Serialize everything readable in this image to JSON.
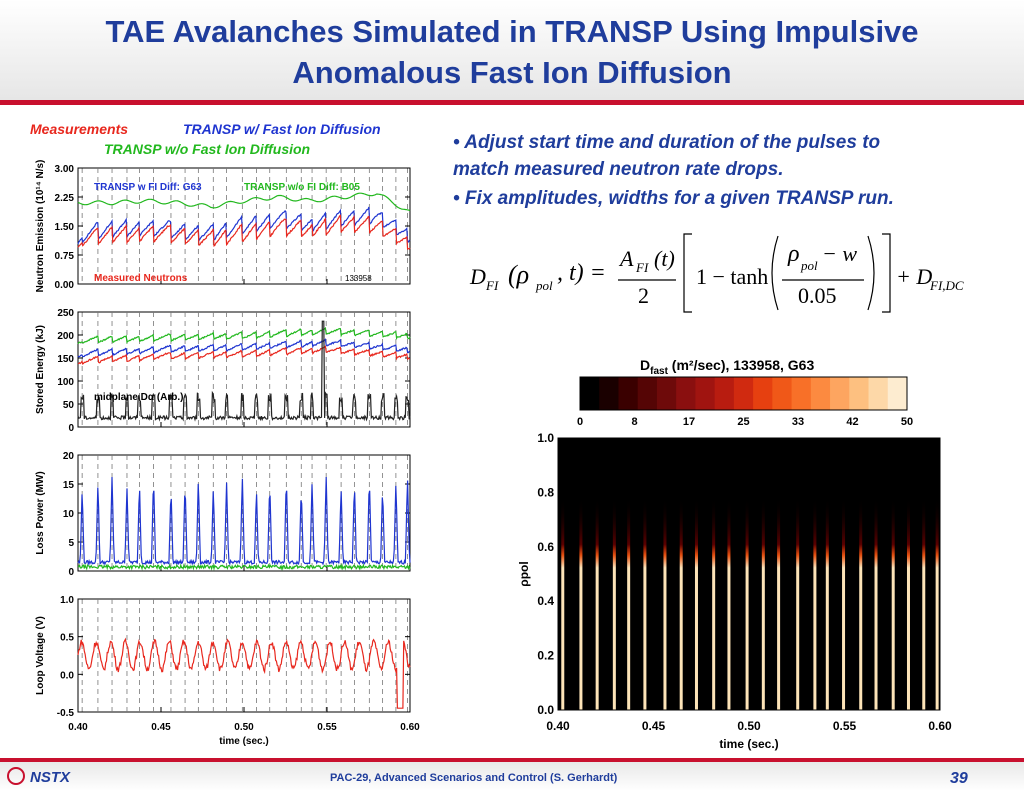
{
  "title": {
    "line1": "TAE Avalanches Simulated in TRANSP Using Impulsive",
    "line2": "Anomalous Fast Ion Diffusion"
  },
  "colors": {
    "accent_red": "#c8102e",
    "title_blue": "#1f3d9c",
    "measured": "#e8281e",
    "with_diff": "#1f35d0",
    "without_diff": "#22b81e"
  },
  "legend": {
    "measurements": "Measurements",
    "transp_with": "TRANSP w/ Fast Ion Diffusion",
    "transp_without": "TRANSP w/o Fast Ion Diffusion"
  },
  "bullets": {
    "b1_line1": "• Adjust start time and duration of the pulses to",
    "b1_line2": "match measured neutron rate drops.",
    "b2": "• Fix amplitudes, widths for a given TRANSP run."
  },
  "formula": {
    "lhs": "D",
    "lhs_sub": "FI",
    "lhs_args": "(ρ",
    "lhs_args_sub": "pol",
    "lhs_args_end": ", t) =",
    "num": "A",
    "num_sub": "FI",
    "num_arg": "(t)",
    "den": "2",
    "bracket_mid": "1 − tanh",
    "inner_num": "ρ",
    "inner_num_sub": "pol",
    "inner_num_end": " − w",
    "inner_den": "0.05",
    "rhs": "+ D",
    "rhs_sub": "FI,DC"
  },
  "footer": {
    "logo": "NSTX",
    "center": "PAC-29, Advanced Scenarios and Control (S. Gerhardt)",
    "page": "39"
  },
  "chart_data": [
    {
      "type": "line",
      "panel": "neutron-emission",
      "ylabel": "Neutron Emission (10¹⁴ N/s)",
      "ylim": [
        0,
        3
      ],
      "yticks": [
        "0.00",
        "0.75",
        "1.50",
        "2.25",
        "3.00"
      ],
      "xlim": [
        0.4,
        0.6
      ],
      "annotations": [
        "TRANSP w FI Diff: G63",
        "TRANSP w/o FI Diff: B05",
        "Measured Neutrons",
        "133958"
      ],
      "series": [
        {
          "name": "TRANSP w/o FI Diff: B05",
          "color": "#22b81e",
          "x": [
            0.4,
            0.42,
            0.44,
            0.46,
            0.48,
            0.5,
            0.52,
            0.54,
            0.56,
            0.58,
            0.6
          ],
          "values": [
            2.1,
            2.1,
            2.15,
            2.1,
            2.0,
            2.15,
            2.25,
            2.15,
            2.25,
            2.35,
            1.85
          ]
        },
        {
          "name": "TRANSP w FI Diff: G63",
          "color": "#1f35d0",
          "x": [
            0.4,
            0.42,
            0.44,
            0.46,
            0.48,
            0.5,
            0.52,
            0.54,
            0.56,
            0.58,
            0.6
          ],
          "values": [
            1.3,
            1.45,
            1.5,
            1.4,
            1.35,
            1.55,
            1.7,
            1.6,
            1.75,
            1.8,
            1.3
          ]
        },
        {
          "name": "Measured Neutrons",
          "color": "#e8281e",
          "x": [
            0.4,
            0.42,
            0.44,
            0.46,
            0.48,
            0.5,
            0.52,
            0.54,
            0.56,
            0.58,
            0.6
          ],
          "values": [
            1.2,
            1.3,
            1.35,
            1.3,
            1.2,
            1.35,
            1.5,
            1.45,
            1.6,
            1.55,
            1.1
          ]
        }
      ]
    },
    {
      "type": "line",
      "panel": "stored-energy",
      "ylabel": "Stored Energy (kJ)",
      "ylim": [
        0,
        250
      ],
      "yticks": [
        "0",
        "50",
        "100",
        "150",
        "200",
        "250"
      ],
      "xlim": [
        0.4,
        0.6
      ],
      "annotations": [
        "midplane Dα (Arb.)"
      ],
      "series": [
        {
          "name": "TRANSP w/o FI Diff",
          "color": "#22b81e",
          "x": [
            0.4,
            0.45,
            0.5,
            0.55,
            0.6
          ],
          "values": [
            190,
            195,
            200,
            210,
            200
          ]
        },
        {
          "name": "TRANSP w FI Diff",
          "color": "#1f35d0",
          "x": [
            0.4,
            0.45,
            0.5,
            0.55,
            0.6
          ],
          "values": [
            160,
            170,
            175,
            185,
            170
          ]
        },
        {
          "name": "Measured",
          "color": "#e8281e",
          "x": [
            0.4,
            0.45,
            0.5,
            0.55,
            0.6
          ],
          "values": [
            145,
            155,
            160,
            170,
            155
          ]
        },
        {
          "name": "midplane Dα",
          "color": "#222222",
          "x": [
            0.4,
            0.5,
            0.6
          ],
          "values": [
            20,
            20,
            20
          ]
        }
      ]
    },
    {
      "type": "line",
      "panel": "loss-power",
      "ylabel": "Loss Power (MW)",
      "ylim": [
        0,
        20
      ],
      "yticks": [
        "0",
        "5",
        "10",
        "15",
        "20"
      ],
      "xlim": [
        0.4,
        0.6
      ],
      "series": [
        {
          "name": "TRANSP w FI Diff",
          "color": "#1f35d0",
          "x": [
            0.4,
            0.6
          ],
          "values": [
            1.5,
            1.5
          ]
        },
        {
          "name": "TRANSP w/o FI Diff",
          "color": "#22b81e",
          "x": [
            0.4,
            0.6
          ],
          "values": [
            0.7,
            0.7
          ]
        }
      ]
    },
    {
      "type": "line",
      "panel": "loop-voltage",
      "ylabel": "Loop Voltage (V)",
      "ylim": [
        -0.5,
        1.0
      ],
      "yticks": [
        "-0.5",
        "0.0",
        "0.5",
        "1.0"
      ],
      "xlim": [
        0.4,
        0.6
      ],
      "xticks": [
        "0.40",
        "0.45",
        "0.50",
        "0.55",
        "0.60"
      ],
      "xlabel": "time (sec.)",
      "series": [
        {
          "name": "Loop Voltage",
          "color": "#e8281e",
          "x": [
            0.4,
            0.5,
            0.6
          ],
          "values": [
            0.25,
            0.2,
            0.2
          ]
        }
      ]
    },
    {
      "type": "heatmap",
      "panel": "dfast",
      "title": "D",
      "title_sub": "fast",
      "title_units": " (m²/sec), 133958, G63",
      "colorbar_ticks": [
        "0",
        "8",
        "17",
        "25",
        "33",
        "42",
        "50"
      ],
      "xlim": [
        0.4,
        0.6
      ],
      "xticks": [
        "0.40",
        "0.45",
        "0.50",
        "0.55",
        "0.60"
      ],
      "xlabel": "time (sec.)",
      "ylabel": "ρpol",
      "ylim": [
        0,
        1
      ],
      "yticks": [
        "0.0",
        "0.2",
        "0.4",
        "0.6",
        "0.8",
        "1.0"
      ],
      "pulse_rho_center": 0.7,
      "pulse_rho_width": 0.05,
      "pulse_times": [
        0.4025,
        0.412,
        0.4205,
        0.4295,
        0.437,
        0.4455,
        0.456,
        0.4645,
        0.4725,
        0.4815,
        0.4895,
        0.499,
        0.5075,
        0.5155,
        0.5255,
        0.5345,
        0.541,
        0.5495,
        0.5585,
        0.5665,
        0.5755,
        0.5835,
        0.5915,
        0.5985
      ]
    }
  ]
}
